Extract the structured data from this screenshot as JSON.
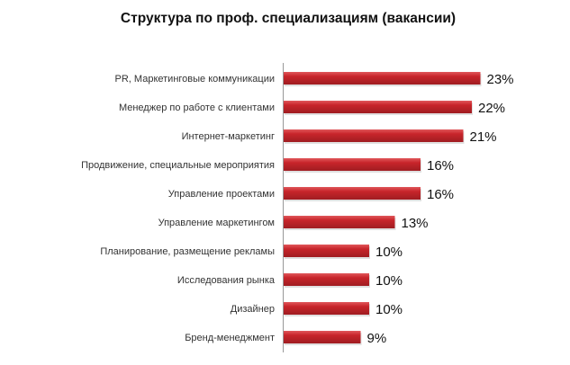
{
  "chart_data": {
    "type": "bar",
    "orientation": "horizontal",
    "title": "Структура по проф. специализациям (вакансии)",
    "xlabel": "",
    "ylabel": "",
    "categories": [
      "PR, Маркетинговые коммуникации",
      "Менеджер по работе с клиентами",
      "Интернет-маркетинг",
      "Продвижение, специальные мероприятия",
      "Управление проектами",
      "Управление маркетингом",
      "Планирование, размещение рекламы",
      "Исследования рынка",
      "Дизайнер",
      "Бренд-менеджмент"
    ],
    "values": [
      23,
      22,
      21,
      16,
      16,
      13,
      10,
      10,
      10,
      9
    ],
    "value_labels": [
      "23%",
      "22%",
      "21%",
      "16%",
      "16%",
      "13%",
      "10%",
      "10%",
      "10%",
      "9%"
    ],
    "bar_color": "#c0272d",
    "grid": false,
    "legend": "none"
  }
}
